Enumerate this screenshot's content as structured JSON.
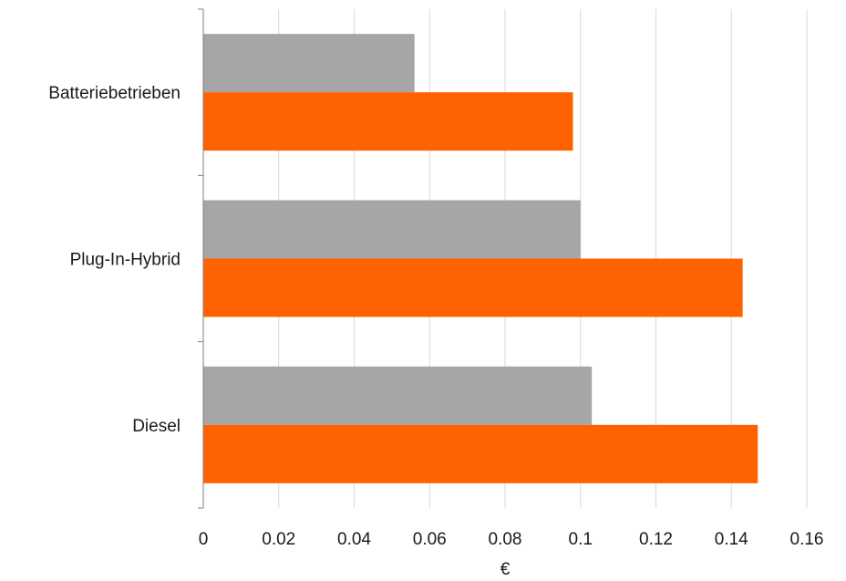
{
  "chart_data": {
    "type": "bar",
    "orientation": "horizontal",
    "categories": [
      "Batteriebetrieben",
      "Plug-In-Hybrid",
      "Diesel"
    ],
    "series": [
      {
        "values": [
          0.056,
          0.1,
          0.103
        ],
        "color": "#a6a6a6"
      },
      {
        "values": [
          0.098,
          0.143,
          0.147
        ],
        "color": "#ff6200"
      }
    ],
    "xlabel": "€",
    "ylabel": "",
    "xlim": [
      0,
      0.16
    ],
    "xticks": [
      0,
      0.02,
      0.04,
      0.06,
      0.08,
      0.1,
      0.12,
      0.14,
      0.16
    ],
    "xtick_labels": [
      "0",
      "0.02",
      "0.04",
      "0.06",
      "0.08",
      "0.1",
      "0.12",
      "0.14",
      "0.16"
    ],
    "grid": "vertical",
    "legend": "none"
  }
}
